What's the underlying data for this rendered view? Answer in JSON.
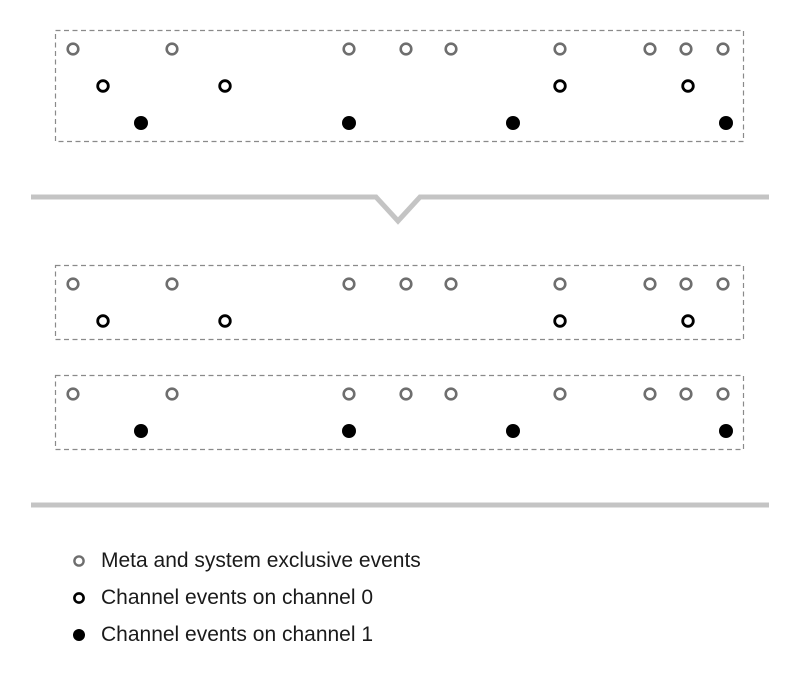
{
  "colors": {
    "meta": "#6e6e6e",
    "channel0": "#000000",
    "channel1": "#000000",
    "box_border": "#8a8a8a",
    "separator": "#c4c4c4"
  },
  "diagram": {
    "description_type": "MIDI track splitting",
    "slots": 12,
    "combined_track": {
      "meta_slots": [
        0,
        2,
        4,
        5,
        6,
        8,
        9,
        10,
        11
      ],
      "channel0_slots": [
        1,
        3,
        8,
        10
      ],
      "channel1_slots": [
        1,
        4,
        7,
        11
      ]
    },
    "split_track_channel0": {
      "meta_slots": [
        0,
        2,
        4,
        5,
        6,
        8,
        9,
        10,
        11
      ],
      "channel0_slots": [
        1,
        3,
        8,
        10
      ]
    },
    "split_track_channel1": {
      "meta_slots": [
        0,
        2,
        4,
        5,
        6,
        8,
        9,
        10,
        11
      ],
      "channel1_slots": [
        1,
        4,
        7,
        11
      ]
    }
  },
  "legend": [
    {
      "icon": "meta-event-icon",
      "marker": "hollow-gray",
      "label": "Meta and system exclusive events"
    },
    {
      "icon": "channel0-event-icon",
      "marker": "hollow-black",
      "label": "Channel events on channel 0"
    },
    {
      "icon": "channel1-event-icon",
      "marker": "filled-black",
      "label": "Channel events on channel 1"
    }
  ]
}
